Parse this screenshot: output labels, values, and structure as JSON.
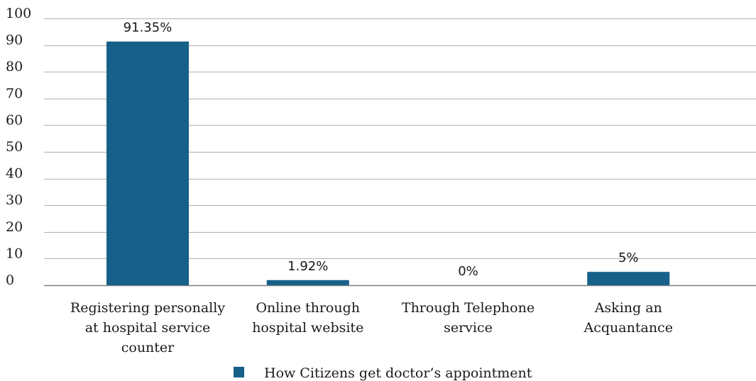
{
  "chart_data": {
    "type": "bar",
    "categories": [
      [
        "Registering personally",
        "at hospital service",
        "counter"
      ],
      [
        "Online through",
        "hospital website"
      ],
      [
        "Through Telephone",
        "service"
      ],
      [
        "Asking an",
        "Acquantance"
      ]
    ],
    "series": [
      {
        "name": "How Citizens get doctor’s appointment",
        "values": [
          91.35,
          1.92,
          0,
          5
        ],
        "data_labels": [
          "91.35%",
          "1.92%",
          "0%",
          "5%"
        ],
        "color": "#17608a"
      }
    ],
    "ylim": [
      0,
      100
    ],
    "yticks": [
      0,
      10,
      20,
      30,
      40,
      50,
      60,
      70,
      80,
      90,
      100
    ],
    "grid": true,
    "legend_position": "bottom-center",
    "colors": {
      "bar": "#17608a",
      "grid": "#b0b0b0",
      "axis": "#7f7f7f"
    }
  }
}
